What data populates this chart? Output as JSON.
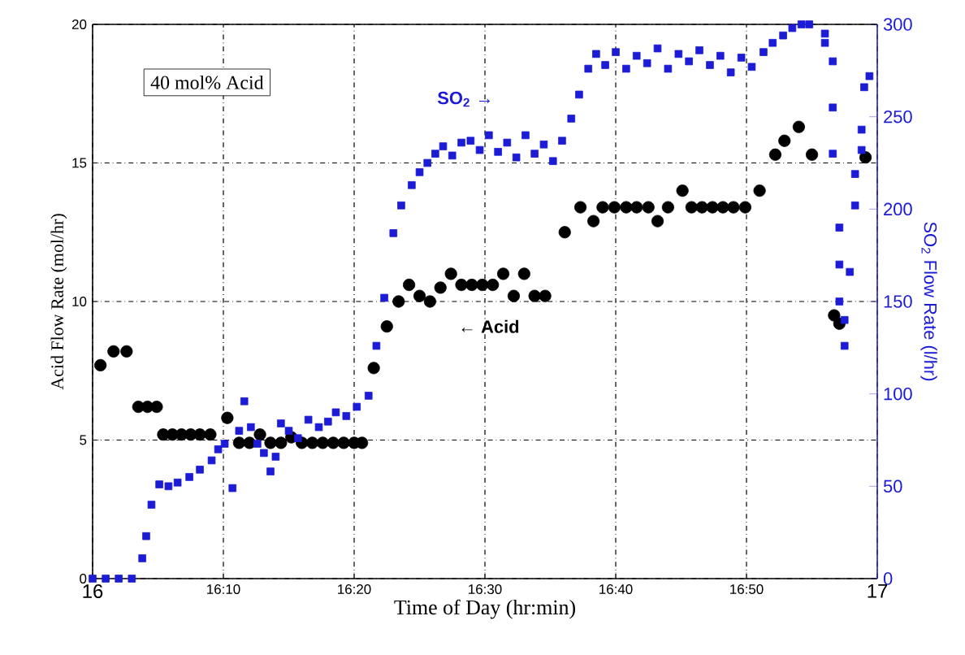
{
  "chart_data": {
    "type": "scatter",
    "xlabel": "Time of Day (hr:min)",
    "ylabel": "Acid Flow Rate (mol/hr)",
    "y2label": "SO$_{2}$ Flow Rate (l/hr)",
    "xlim": [
      16,
      17
    ],
    "xticks": [
      16,
      {
        "value": 16.16667,
        "label": "16:10"
      },
      {
        "value": 16.33333,
        "label": "16:20"
      },
      {
        "value": 16.5,
        "label": "16:30"
      },
      {
        "value": 16.66667,
        "label": "16:40"
      },
      {
        "value": 16.83333,
        "label": "16:50"
      },
      17
    ],
    "ylim": [
      0,
      20
    ],
    "yticks": [
      0,
      5,
      10,
      15,
      20
    ],
    "y2lim": [
      0,
      300
    ],
    "y2ticks": [
      0,
      50,
      100,
      150,
      200,
      250,
      300
    ],
    "grid": true,
    "annotations": [
      "40 mol% Acid",
      "SO$_{2}$ →",
      "← Acid"
    ],
    "series": [
      {
        "marker": "circle",
        "color": "#000000",
        "x": [
          16.01,
          16.0267,
          16.0433,
          16.0583,
          16.07,
          16.0817,
          16.09,
          16.1017,
          16.1133,
          16.125,
          16.1367,
          16.15,
          16.1717,
          16.1867,
          16.2,
          16.2133,
          16.2267,
          16.24,
          16.2533,
          16.2667,
          16.28,
          16.2933,
          16.3067,
          16.32,
          16.3333,
          16.3433,
          16.3583,
          16.375,
          16.39,
          16.4033,
          16.4167,
          16.43,
          16.4433,
          16.4567,
          16.47,
          16.4833,
          16.4967,
          16.51,
          16.5233,
          16.5367,
          16.55,
          16.5633,
          16.5767,
          16.6017,
          16.6217,
          16.6383,
          16.65,
          16.665,
          16.68,
          16.6933,
          16.7083,
          16.72,
          16.7333,
          16.7517,
          16.7633,
          16.7767,
          16.79,
          16.8033,
          16.8167,
          16.8317,
          16.85,
          16.87,
          16.8817,
          16.9,
          16.9167,
          16.945,
          16.9517,
          16.985
        ],
        "values": [
          7.7,
          8.2,
          8.2,
          6.2,
          6.2,
          6.2,
          5.2,
          5.2,
          5.2,
          5.2,
          5.2,
          5.2,
          5.8,
          4.9,
          4.9,
          5.2,
          4.9,
          4.9,
          5.1,
          4.9,
          4.9,
          4.9,
          4.9,
          4.9,
          4.9,
          4.9,
          7.6,
          9.1,
          10.0,
          10.6,
          10.2,
          10.0,
          10.5,
          11.0,
          10.6,
          10.6,
          10.6,
          10.6,
          11.0,
          10.2,
          11.0,
          10.2,
          10.2,
          12.5,
          13.4,
          12.9,
          13.4,
          13.4,
          13.4,
          13.4,
          13.4,
          12.9,
          13.4,
          14.0,
          13.4,
          13.4,
          13.4,
          13.4,
          13.4,
          13.4,
          14.0,
          15.3,
          15.8,
          16.3,
          15.3,
          9.5,
          9.2,
          15.2
        ]
      },
      {
        "marker": "square",
        "color": "#1c1cd6",
        "axis": "y2",
        "x": [
          16,
          16.0167,
          16.0333,
          16.05,
          16.0633,
          16.0683,
          16.075,
          16.085,
          16.0967,
          16.1083,
          16.1233,
          16.1367,
          16.1517,
          16.16,
          16.1683,
          16.1783,
          16.1867,
          16.1933,
          16.2017,
          16.21,
          16.2183,
          16.2267,
          16.2333,
          16.24,
          16.25,
          16.2617,
          16.275,
          16.2883,
          16.3,
          16.31,
          16.3233,
          16.3367,
          16.3517,
          16.3617,
          16.3717,
          16.3833,
          16.3933,
          16.4067,
          16.4167,
          16.4267,
          16.4367,
          16.4467,
          16.4583,
          16.47,
          16.4817,
          16.4933,
          16.505,
          16.5167,
          16.5283,
          16.54,
          16.5517,
          16.5633,
          16.575,
          16.5867,
          16.5983,
          16.61,
          16.62,
          16.6317,
          16.6417,
          16.6533,
          16.6667,
          16.68,
          16.6933,
          16.7067,
          16.72,
          16.7333,
          16.7467,
          16.76,
          16.7733,
          16.7867,
          16.8,
          16.8133,
          16.8267,
          16.84,
          16.855,
          16.8667,
          16.88,
          16.8917,
          16.9033,
          16.9133,
          16.9333,
          16.9333,
          16.9433,
          16.9433,
          16.9433,
          16.9517,
          16.9517,
          16.9517,
          16.9583,
          16.9583,
          16.965,
          16.9717,
          16.9717,
          16.98,
          16.98,
          16.9833,
          16.99
        ],
        "values": [
          0,
          0,
          0,
          0,
          11,
          23,
          40,
          51,
          50,
          52,
          55,
          59,
          64,
          70,
          73,
          49,
          80,
          96,
          82,
          73,
          68,
          58,
          66,
          84,
          80,
          76,
          86,
          82,
          85,
          90,
          88,
          93,
          99,
          126,
          152,
          187,
          202,
          213,
          220,
          225,
          230,
          234,
          229,
          236,
          237,
          232,
          240,
          231,
          236,
          228,
          240,
          230,
          235,
          226,
          237,
          249,
          262,
          276,
          284,
          278,
          285,
          276,
          283,
          279,
          287,
          276,
          284,
          280,
          286,
          278,
          283,
          274,
          282,
          277,
          285,
          290,
          294,
          298,
          300,
          300,
          295,
          290,
          280,
          255,
          230,
          190,
          170,
          150,
          140,
          126,
          166,
          219,
          202,
          243,
          232,
          266,
          272
        ]
      }
    ]
  }
}
